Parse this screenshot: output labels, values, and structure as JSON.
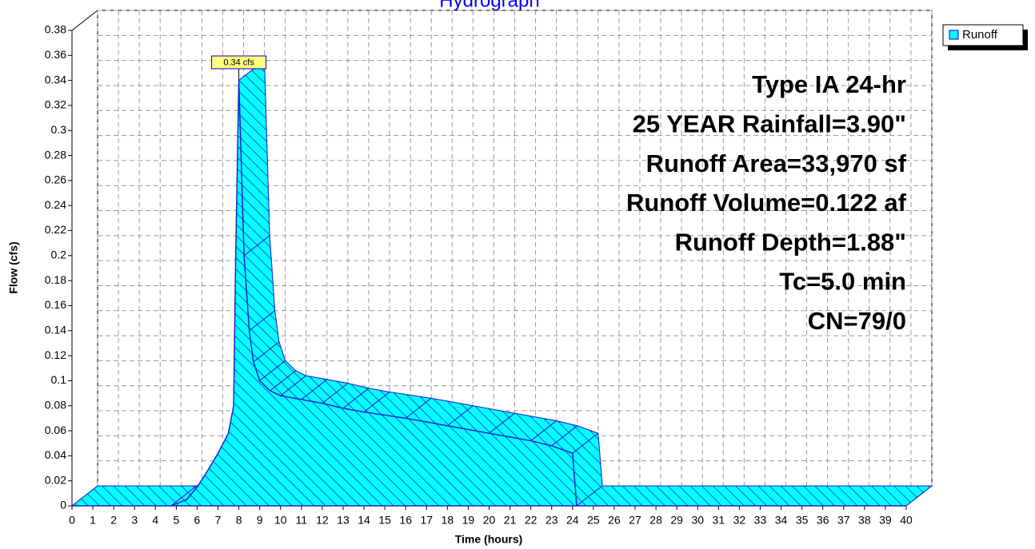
{
  "chart_data": {
    "type": "area",
    "title": "Hydrograph",
    "xlabel": "Time  (hours)",
    "ylabel": "Flow  (cfs)",
    "x": [
      0,
      4.75,
      5.5,
      6,
      6.5,
      7,
      7.5,
      7.75,
      7.85,
      8,
      8.25,
      8.5,
      8.7,
      9,
      9.5,
      10,
      11,
      12,
      13,
      14,
      16,
      18,
      20,
      22,
      23,
      24,
      24.2,
      40
    ],
    "series": [
      {
        "name": "Runoff",
        "color": "#00ffff",
        "values": [
          0,
          0,
          0.005,
          0.015,
          0.028,
          0.042,
          0.058,
          0.08,
          0.2,
          0.34,
          0.2,
          0.14,
          0.115,
          0.1,
          0.092,
          0.088,
          0.085,
          0.082,
          0.078,
          0.075,
          0.07,
          0.064,
          0.058,
          0.052,
          0.048,
          0.042,
          0,
          0
        ]
      }
    ],
    "xlim": [
      0,
      40
    ],
    "ylim": [
      0,
      0.38
    ],
    "xticks": [
      0,
      1,
      2,
      3,
      4,
      5,
      6,
      7,
      8,
      9,
      10,
      11,
      12,
      13,
      14,
      15,
      16,
      17,
      18,
      19,
      20,
      21,
      22,
      23,
      24,
      25,
      26,
      27,
      28,
      29,
      30,
      31,
      32,
      33,
      34,
      35,
      36,
      37,
      38,
      39,
      40
    ],
    "yticks": [
      0,
      0.02,
      0.04,
      0.06,
      0.08,
      0.1,
      0.12,
      0.14,
      0.16,
      0.18,
      0.2,
      0.22,
      0.24,
      0.26,
      0.28,
      0.3,
      0.32,
      0.34,
      0.36,
      0.38
    ],
    "grid": true,
    "legend": "top-right",
    "peak_label": "0.34 cfs",
    "annotations": [
      "Type IA 24-hr",
      "25 YEAR Rainfall=3.90\"",
      "Runoff Area=33,970 sf",
      "Runoff Volume=0.122 af",
      "Runoff Depth=1.88\"",
      "Tc=5.0 min",
      "CN=79/0"
    ]
  }
}
